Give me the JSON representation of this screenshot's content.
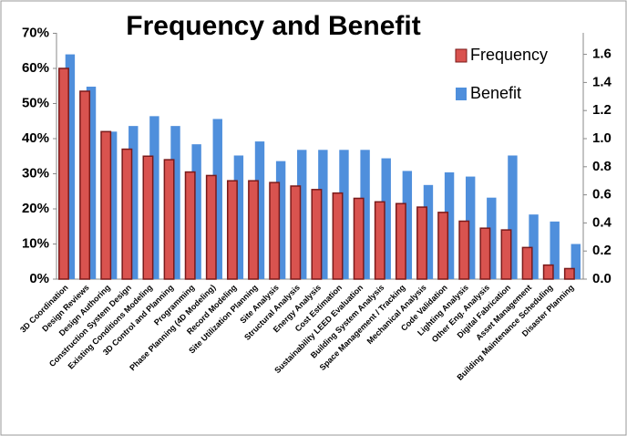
{
  "chart_data": {
    "type": "bar",
    "title": "Frequency and Benefit",
    "categories": [
      "3D Coordination",
      "Design Reviews",
      "Design Authoring",
      "Construction System Design",
      "Existing Conditions Modeling",
      "3D Control and Planning",
      "Programming",
      "Phase Planning (4D Modeling)",
      "Record Modeling",
      "Site Utilization Planning",
      "Site Analysis",
      "Structural Analysis",
      "Energy Analysis",
      "Cost Estimation",
      "Sustainability LEED Evaluation",
      "Building System Analysis",
      "Space Management / Tracking",
      "Mechanical Analysis",
      "Code Validation",
      "Lighting Analysis",
      "Other Eng. Analysis",
      "Digital Fabrication",
      "Asset Management",
      "Building Maintenance Scheduling",
      "Disaster Planning"
    ],
    "series": [
      {
        "name": "Frequency",
        "color": "#d9534f",
        "values": [
          60,
          53.5,
          42,
          37,
          35,
          34,
          30.5,
          29.5,
          28,
          28,
          27.5,
          26.5,
          25.5,
          24.5,
          23,
          22,
          21.5,
          20.5,
          19,
          16.5,
          14.5,
          14,
          9,
          4,
          3
        ]
      },
      {
        "name": "Benefit",
        "color": "#4f8fdc",
        "axis": "y2",
        "values": [
          1.6,
          1.37,
          1.05,
          1.09,
          1.16,
          1.09,
          0.96,
          1.14,
          0.88,
          0.98,
          0.84,
          0.92,
          0.92,
          0.92,
          0.92,
          0.86,
          0.77,
          0.67,
          0.76,
          0.73,
          0.58,
          0.88,
          0.46,
          0.41,
          0.25
        ]
      }
    ],
    "ylim": [
      0,
      70
    ],
    "yticks": [
      {
        "value": 0,
        "label": "0%"
      },
      {
        "value": 10,
        "label": "10%"
      },
      {
        "value": 20,
        "label": "20%"
      },
      {
        "value": 30,
        "label": "30%"
      },
      {
        "value": 40,
        "label": "40%"
      },
      {
        "value": 50,
        "label": "50%"
      },
      {
        "value": 60,
        "label": "60%"
      },
      {
        "value": 70,
        "label": "70%"
      }
    ],
    "y2lim": [
      0,
      1.75
    ],
    "y2ticks": [
      {
        "value": 0,
        "label": "0.0"
      },
      0.2,
      0.4,
      0.6,
      0.8,
      {
        "value": 1,
        "label": "1.0"
      },
      1.2,
      1.4,
      1.6
    ],
    "legend": "top-right"
  }
}
